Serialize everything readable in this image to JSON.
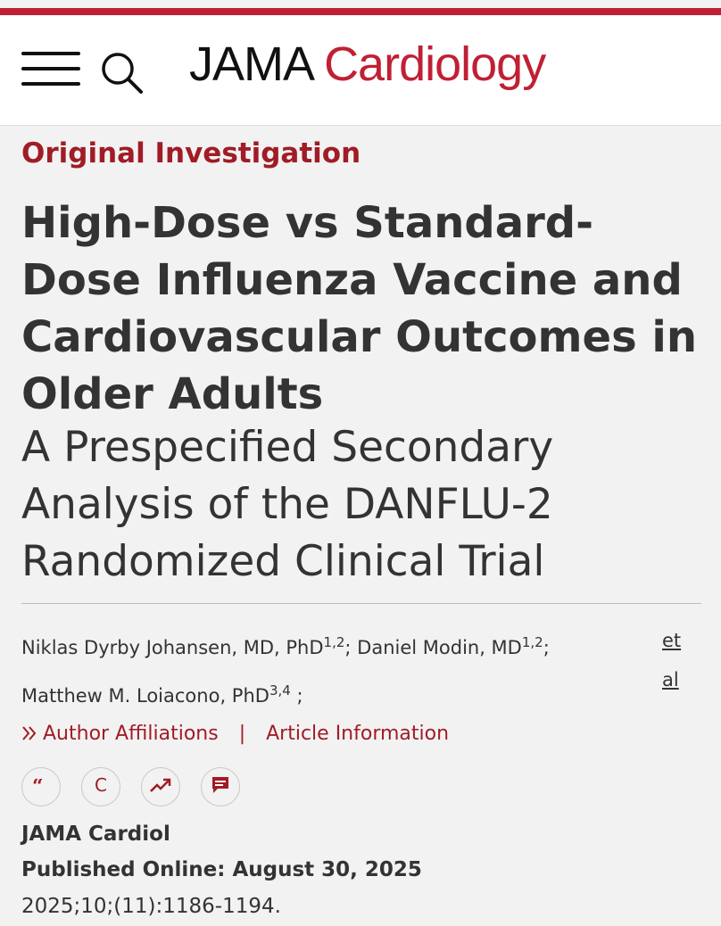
{
  "header": {
    "logo_part1": "JAMA",
    "logo_part2": "Cardiology",
    "accent_color": "#c02034",
    "menu_icon": "hamburger-menu-icon",
    "search_icon": "search-icon"
  },
  "article": {
    "section": "Original Investigation",
    "title": "High-Dose vs Standard-Dose Influenza Vaccine and Cardiovascular Outcomes in Older Adults",
    "subtitle": "A Prespecified Secondary Analysis of the DANFLU-2 Randomized Clinical Trial",
    "authors": [
      {
        "name": "Niklas Dyrby Johansen, MD, PhD",
        "affil": "1,2",
        "sep": "; "
      },
      {
        "name": "Daniel Modin, MD",
        "affil": "1,2",
        "sep": ";"
      },
      {
        "name": "Matthew M. Loiacono, PhD",
        "affil": "3,4",
        "sep": " ;"
      }
    ],
    "etal": "et al",
    "links": {
      "author_affiliations": "Author Affiliations",
      "separator": "|",
      "article_information": "Article Information"
    },
    "tools": [
      "quote-icon",
      "copyright-icon",
      "trending-icon",
      "comment-icon"
    ],
    "journal": "JAMA Cardiol",
    "published": "Published Online: August 30, 2025",
    "citation": "2025;10;(11):1186-1194."
  }
}
